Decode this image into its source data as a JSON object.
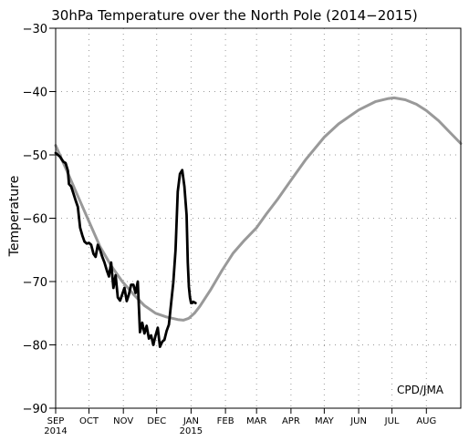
{
  "chart_data": {
    "type": "line",
    "title": "30hPa Temperature over the North Pole (2014−2015)",
    "ylabel": "Temperature",
    "credit": "CPD/JMA",
    "ylim": [
      -90,
      -30
    ],
    "yticks": [
      -90,
      -80,
      -70,
      -60,
      -50,
      -40,
      -30
    ],
    "ytick_labels": [
      "−90",
      "−80",
      "−70",
      "−60",
      "−50",
      "−40",
      "−30"
    ],
    "xlim": [
      0,
      365
    ],
    "x_units": "days since SEP 1 2014",
    "months": [
      {
        "label": "SEP",
        "day": 0
      },
      {
        "label": "OCT",
        "day": 30
      },
      {
        "label": "NOV",
        "day": 61
      },
      {
        "label": "DEC",
        "day": 91
      },
      {
        "label": "JAN",
        "day": 122
      },
      {
        "label": "FEB",
        "day": 153
      },
      {
        "label": "MAR",
        "day": 181
      },
      {
        "label": "APR",
        "day": 212
      },
      {
        "label": "MAY",
        "day": 242
      },
      {
        "label": "JUN",
        "day": 273
      },
      {
        "label": "JUL",
        "day": 303
      },
      {
        "label": "AUG",
        "day": 334
      }
    ],
    "year_labels": [
      {
        "label": "2014",
        "day": 0
      },
      {
        "label": "2015",
        "day": 122
      }
    ],
    "series": [
      {
        "name": "",
        "color": "#999999",
        "style": "climatology",
        "x": [
          0,
          10,
          20,
          30,
          40,
          50,
          60,
          70,
          80,
          90,
          100,
          110,
          115,
          120,
          125,
          130,
          140,
          150,
          160,
          170,
          181,
          190,
          200,
          212,
          225,
          242,
          255,
          273,
          288,
          300,
          305,
          315,
          325,
          334,
          345,
          355,
          365
        ],
        "y": [
          -48.5,
          -52.5,
          -56.5,
          -60.5,
          -64.5,
          -67.5,
          -70.0,
          -72.0,
          -73.8,
          -75.0,
          -75.6,
          -76.0,
          -76.1,
          -75.8,
          -75.0,
          -73.9,
          -71.2,
          -68.2,
          -65.5,
          -63.5,
          -61.5,
          -59.3,
          -57.0,
          -54.0,
          -50.8,
          -47.2,
          -45.1,
          -42.9,
          -41.6,
          -41.1,
          -41.0,
          -41.3,
          -42.0,
          -43.0,
          -44.6,
          -46.4,
          -48.2
        ]
      },
      {
        "name": "",
        "color": "#000000",
        "style": "observed",
        "x": [
          0,
          2,
          4,
          5,
          7,
          9,
          11,
          12,
          14,
          16,
          18,
          20,
          22,
          24,
          26,
          28,
          30,
          32,
          34,
          36,
          38,
          40,
          42,
          44,
          46,
          48,
          50,
          52,
          54,
          56,
          58,
          60,
          62,
          64,
          66,
          68,
          70,
          72,
          74,
          76,
          78,
          80,
          82,
          84,
          86,
          88,
          90,
          92,
          94,
          96,
          98,
          100,
          102,
          104,
          106,
          108,
          110,
          112,
          114,
          116,
          118,
          119,
          120,
          121,
          122,
          123,
          124,
          125,
          126
        ],
        "y": [
          -49.7,
          -50.0,
          -50.3,
          -50.6,
          -51.1,
          -51.3,
          -52.5,
          -54.6,
          -55.0,
          -56.1,
          -57.2,
          -58.2,
          -61.5,
          -62.7,
          -63.7,
          -64.0,
          -63.9,
          -64.2,
          -65.6,
          -66.1,
          -64.2,
          -65.0,
          -66.1,
          -67.0,
          -68.2,
          -69.2,
          -67.0,
          -71.0,
          -69.0,
          -72.5,
          -73.0,
          -72.0,
          -71.0,
          -73.1,
          -72.0,
          -70.5,
          -70.5,
          -71.8,
          -70.0,
          -78.0,
          -76.5,
          -78.2,
          -77.0,
          -79.0,
          -78.5,
          -80.0,
          -78.5,
          -77.3,
          -80.3,
          -79.5,
          -79.2,
          -77.8,
          -76.8,
          -73.5,
          -70.2,
          -65.0,
          -55.8,
          -53.0,
          -52.4,
          -55.0,
          -59.5,
          -67.0,
          -70.8,
          -72.5,
          -73.4,
          -73.4,
          -73.2,
          -73.3,
          -73.4
        ]
      }
    ],
    "grid": true
  }
}
